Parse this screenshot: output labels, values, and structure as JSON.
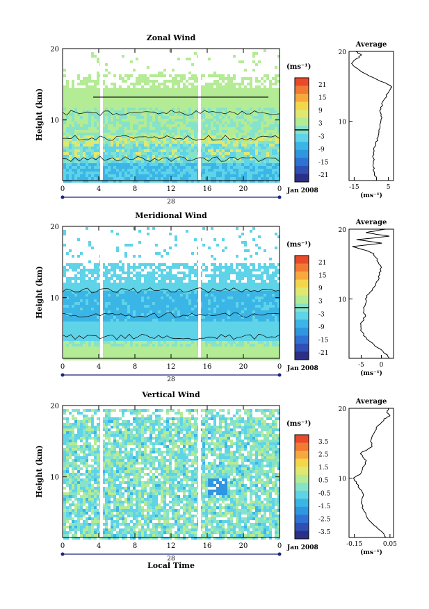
{
  "colors": {
    "scale": [
      "#2b2f87",
      "#2f4fb5",
      "#2f72d4",
      "#2f96e0",
      "#3ab5e6",
      "#5fd3e8",
      "#86e3c9",
      "#b4eb95",
      "#e0e870",
      "#f4d64b",
      "#f7a93d",
      "#f27a33",
      "#e84a2a"
    ],
    "white_gap": "#ffffff",
    "contour": "#000000"
  },
  "chart_data": [
    {
      "type": "heatmap",
      "panel": "zonal",
      "title": "Zonal Wind",
      "ylabel": "Height (km)",
      "xlabel": "",
      "x_ticks": [
        "0",
        "4",
        "8",
        "12",
        "16",
        "20",
        "0"
      ],
      "x_range": [
        0,
        24
      ],
      "y_ticks": [
        "10",
        "20"
      ],
      "y_range": [
        1.5,
        20
      ],
      "date_tick": "28",
      "date_label": "Jan 2008",
      "colorbar": {
        "unit": "(ms⁻¹)",
        "ticks": [
          "21",
          "15",
          "9",
          "3",
          "-3",
          "-9",
          "-15",
          "-21"
        ],
        "range": [
          -24,
          24
        ]
      },
      "average": {
        "title": "Average",
        "xlabel": "(ms⁻¹)",
        "x_ticks": [
          "-15",
          "5"
        ],
        "x_range": [
          -18,
          8
        ],
        "y_ticks": [
          "10",
          "20"
        ],
        "profile": [
          [
            1.5,
            -2
          ],
          [
            2.5,
            -3
          ],
          [
            3.5,
            -4
          ],
          [
            4.5,
            -3.5
          ],
          [
            5.5,
            -4
          ],
          [
            6.5,
            -2.5
          ],
          [
            7.5,
            -1.5
          ],
          [
            8.5,
            -0.5
          ],
          [
            9.5,
            0.5
          ],
          [
            10.5,
            1
          ],
          [
            11.5,
            0
          ],
          [
            12.5,
            1.5
          ],
          [
            13.5,
            3.5
          ],
          [
            14.5,
            6
          ],
          [
            15,
            7
          ],
          [
            16,
            -2
          ],
          [
            17,
            -10
          ],
          [
            18,
            -16
          ],
          [
            18.5,
            -16
          ],
          [
            19,
            -13
          ],
          [
            19.5,
            -11
          ],
          [
            20,
            -14
          ]
        ]
      }
    },
    {
      "type": "heatmap",
      "panel": "meridional",
      "title": "Meridional Wind",
      "ylabel": "Height (km)",
      "xlabel": "",
      "x_ticks": [
        "0",
        "4",
        "8",
        "12",
        "16",
        "20",
        "0"
      ],
      "x_range": [
        0,
        24
      ],
      "y_ticks": [
        "10",
        "20"
      ],
      "y_range": [
        1.5,
        20
      ],
      "date_tick": "28",
      "date_label": "Jan 2008",
      "colorbar": {
        "unit": "(ms⁻¹)",
        "ticks": [
          "21",
          "15",
          "9",
          "3",
          "-3",
          "-9",
          "-15",
          "-21"
        ],
        "range": [
          -24,
          24
        ]
      },
      "average": {
        "title": "Average",
        "xlabel": "(ms⁻¹)",
        "x_ticks": [
          "-5",
          "0"
        ],
        "x_range": [
          -8,
          3
        ],
        "y_ticks": [
          "10",
          "20"
        ],
        "profile": [
          [
            1.5,
            2
          ],
          [
            2.5,
            0.5
          ],
          [
            3.5,
            -2
          ],
          [
            4.5,
            -4
          ],
          [
            5.5,
            -5
          ],
          [
            6.5,
            -5
          ],
          [
            7.5,
            -4
          ],
          [
            8.5,
            -4.5
          ],
          [
            9.5,
            -4
          ],
          [
            10.5,
            -3.5
          ],
          [
            11.5,
            -2
          ],
          [
            12.5,
            -1
          ],
          [
            13.5,
            -0.5
          ],
          [
            14.5,
            0
          ],
          [
            15.5,
            -1
          ],
          [
            16.5,
            -2
          ],
          [
            17,
            -4
          ],
          [
            17.5,
            -7
          ],
          [
            18,
            0
          ],
          [
            18.5,
            -6
          ],
          [
            19,
            2
          ],
          [
            19.5,
            -4
          ],
          [
            20,
            1
          ]
        ]
      }
    },
    {
      "type": "heatmap",
      "panel": "vertical",
      "title": "Vertical Wind",
      "ylabel": "Height (km)",
      "xlabel": "Local Time",
      "x_ticks": [
        "0",
        "4",
        "8",
        "12",
        "16",
        "20",
        "0"
      ],
      "x_range": [
        0,
        24
      ],
      "y_ticks": [
        "10",
        "20"
      ],
      "y_range": [
        1.5,
        20
      ],
      "date_tick": "28",
      "date_label": "Jan 2008",
      "colorbar": {
        "unit": "(ms⁻¹)",
        "ticks": [
          "3.5",
          "2.5",
          "1.5",
          "0.5",
          "-0.5",
          "-1.5",
          "-2.5",
          "-3.5"
        ],
        "range": [
          -4,
          4
        ]
      },
      "average": {
        "title": "Average",
        "xlabel": "(ms⁻¹)",
        "x_ticks": [
          "-0.15",
          "0.05"
        ],
        "x_range": [
          -0.18,
          0.07
        ],
        "y_ticks": [
          "10",
          "20"
        ],
        "profile": [
          [
            1.5,
            0.03
          ],
          [
            2.5,
            0
          ],
          [
            3.5,
            -0.05
          ],
          [
            4.5,
            -0.08
          ],
          [
            5.5,
            -0.1
          ],
          [
            6.5,
            -0.11
          ],
          [
            7.5,
            -0.1
          ],
          [
            8.5,
            -0.12
          ],
          [
            9.5,
            -0.14
          ],
          [
            10,
            -0.16
          ],
          [
            10.5,
            -0.12
          ],
          [
            11.5,
            -0.1
          ],
          [
            12.5,
            -0.08
          ],
          [
            13.5,
            -0.12
          ],
          [
            14.5,
            -0.05
          ],
          [
            15.5,
            -0.06
          ],
          [
            16.5,
            -0.04
          ],
          [
            17.5,
            -0.02
          ],
          [
            18.5,
            0.02
          ],
          [
            19,
            0.05
          ],
          [
            19.5,
            0.03
          ],
          [
            20,
            0.04
          ]
        ]
      }
    }
  ]
}
